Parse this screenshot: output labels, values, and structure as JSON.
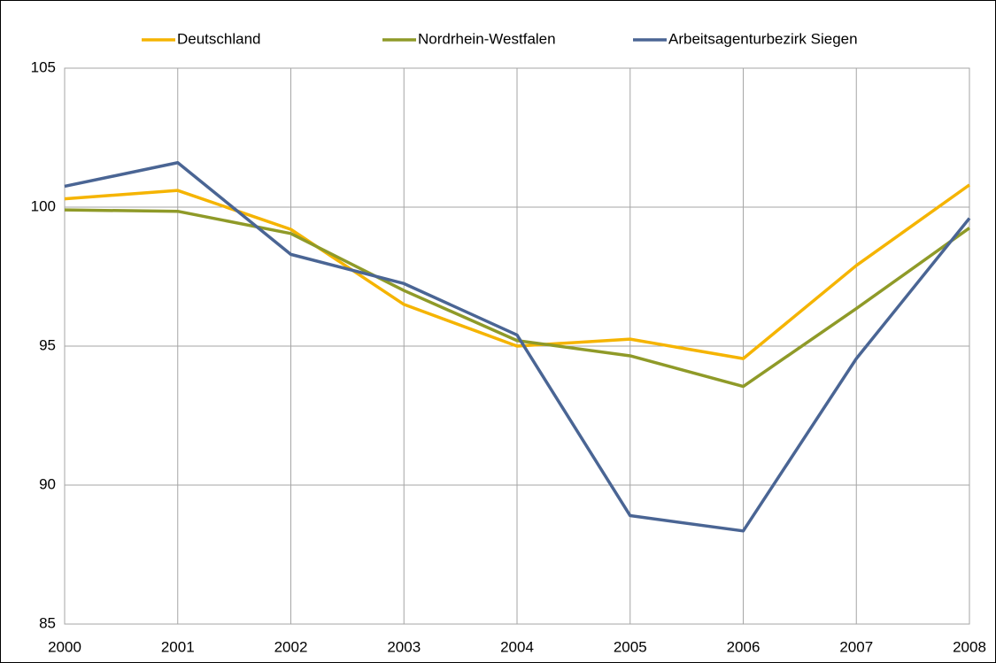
{
  "chart_data": {
    "type": "line",
    "x": [
      2000,
      2001,
      2002,
      2003,
      2004,
      2005,
      2006,
      2007,
      2008
    ],
    "xlim": [
      2000,
      2008
    ],
    "xticks": [
      2000,
      2001,
      2002,
      2003,
      2004,
      2005,
      2006,
      2007,
      2008
    ],
    "ylim": [
      85,
      105
    ],
    "yticks": [
      85,
      90,
      95,
      100,
      105
    ],
    "grid": true,
    "legend": "top",
    "series": [
      {
        "name": "Deutschland",
        "color": "#f5b400",
        "values": [
          100.3,
          100.6,
          99.2,
          96.5,
          95.0,
          95.25,
          94.55,
          97.9,
          100.8
        ]
      },
      {
        "name": "Nordrhein-Westfalen",
        "color": "#8f9a28",
        "values": [
          99.9,
          99.85,
          99.05,
          97.0,
          95.2,
          94.65,
          93.55,
          96.35,
          99.25
        ]
      },
      {
        "name": "Arbeitsagenturbezirk Siegen",
        "color": "#4a6594",
        "values": [
          100.75,
          101.6,
          98.3,
          97.25,
          95.4,
          88.9,
          88.35,
          94.55,
          99.6
        ]
      }
    ]
  }
}
